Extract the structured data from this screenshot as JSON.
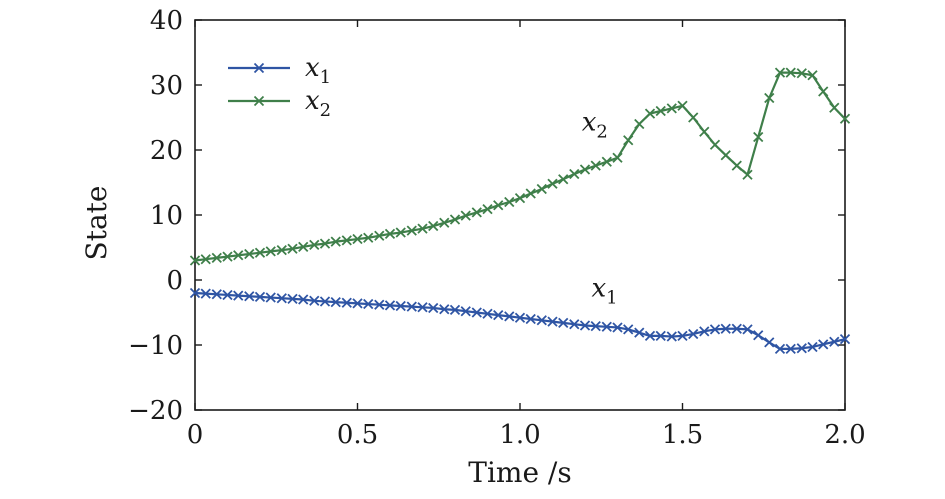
{
  "chart_data": {
    "type": "line",
    "title": "",
    "xlabel": "Time /s",
    "ylabel": "State",
    "xlim": [
      0,
      2.0
    ],
    "ylim": [
      -20,
      40
    ],
    "x_ticks": [
      0,
      0.5,
      1.0,
      1.5,
      2.0
    ],
    "x_tick_labels": [
      "0",
      "0.5",
      "1.0",
      "1.5",
      "2.0"
    ],
    "y_ticks": [
      -20,
      -10,
      0,
      10,
      20,
      30,
      40
    ],
    "y_tick_labels": [
      "−20",
      "−10",
      "0",
      "10",
      "20",
      "30",
      "40"
    ],
    "grid": false,
    "legend_position": "top-left",
    "legend": [
      {
        "base": "x",
        "sub": "1",
        "color": "#2f55a4"
      },
      {
        "base": "x",
        "sub": "2",
        "color": "#3f7f4a"
      }
    ],
    "x": [
      0,
      0.033,
      0.067,
      0.1,
      0.133,
      0.167,
      0.2,
      0.233,
      0.267,
      0.3,
      0.333,
      0.367,
      0.4,
      0.433,
      0.467,
      0.5,
      0.533,
      0.567,
      0.6,
      0.633,
      0.667,
      0.7,
      0.733,
      0.767,
      0.8,
      0.833,
      0.867,
      0.9,
      0.933,
      0.967,
      1.0,
      1.033,
      1.067,
      1.1,
      1.133,
      1.167,
      1.2,
      1.233,
      1.267,
      1.3,
      1.333,
      1.367,
      1.4,
      1.433,
      1.467,
      1.5,
      1.533,
      1.567,
      1.6,
      1.633,
      1.667,
      1.7,
      1.733,
      1.767,
      1.8,
      1.833,
      1.867,
      1.9,
      1.933,
      1.967,
      2.0
    ],
    "series": [
      {
        "name": "x1",
        "color": "#2f55a4",
        "marker": "x",
        "values": [
          -2.0,
          -2.1,
          -2.2,
          -2.3,
          -2.4,
          -2.5,
          -2.6,
          -2.7,
          -2.8,
          -2.9,
          -3.0,
          -3.2,
          -3.3,
          -3.4,
          -3.5,
          -3.6,
          -3.7,
          -3.8,
          -3.9,
          -4.0,
          -4.1,
          -4.2,
          -4.3,
          -4.5,
          -4.6,
          -4.8,
          -5.0,
          -5.2,
          -5.4,
          -5.6,
          -5.8,
          -6.0,
          -6.2,
          -6.4,
          -6.6,
          -6.8,
          -7.0,
          -7.1,
          -7.2,
          -7.3,
          -7.6,
          -8.1,
          -8.6,
          -8.6,
          -8.7,
          -8.6,
          -8.3,
          -7.9,
          -7.6,
          -7.5,
          -7.5,
          -7.6,
          -8.5,
          -9.6,
          -10.6,
          -10.6,
          -10.5,
          -10.3,
          -9.9,
          -9.5,
          -9.1
        ]
      },
      {
        "name": "x2",
        "color": "#3f7f4a",
        "marker": "x",
        "values": [
          3.0,
          3.2,
          3.4,
          3.6,
          3.8,
          4.0,
          4.2,
          4.4,
          4.6,
          4.8,
          5.1,
          5.4,
          5.6,
          5.9,
          6.1,
          6.3,
          6.5,
          6.8,
          7.1,
          7.3,
          7.6,
          7.9,
          8.3,
          8.8,
          9.3,
          9.9,
          10.4,
          10.9,
          11.5,
          12.0,
          12.6,
          13.3,
          14.0,
          14.8,
          15.5,
          16.3,
          17.0,
          17.6,
          18.2,
          18.8,
          21.5,
          24.0,
          25.6,
          26.0,
          26.4,
          26.8,
          25.0,
          22.8,
          20.8,
          19.2,
          17.6,
          16.2,
          22.0,
          28.0,
          31.9,
          31.9,
          31.8,
          31.5,
          29.0,
          26.5,
          24.8
        ]
      }
    ],
    "annotations": [
      {
        "base": "x",
        "sub": "2",
        "x": 1.19,
        "y": 23
      },
      {
        "base": "x",
        "sub": "1",
        "x": 1.22,
        "y": -2.5
      }
    ]
  }
}
